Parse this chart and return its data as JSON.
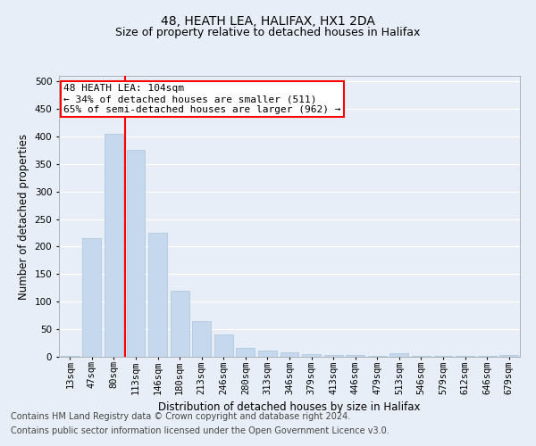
{
  "title": "48, HEATH LEA, HALIFAX, HX1 2DA",
  "subtitle": "Size of property relative to detached houses in Halifax",
  "xlabel": "Distribution of detached houses by size in Halifax",
  "ylabel": "Number of detached properties",
  "categories": [
    "13sqm",
    "47sqm",
    "80sqm",
    "113sqm",
    "146sqm",
    "180sqm",
    "213sqm",
    "246sqm",
    "280sqm",
    "313sqm",
    "346sqm",
    "379sqm",
    "413sqm",
    "446sqm",
    "479sqm",
    "513sqm",
    "546sqm",
    "579sqm",
    "612sqm",
    "646sqm",
    "679sqm"
  ],
  "values": [
    2,
    215,
    405,
    375,
    225,
    120,
    65,
    40,
    17,
    12,
    8,
    5,
    4,
    3,
    2,
    7,
    2,
    2,
    1,
    1,
    3
  ],
  "bar_color": "#c5d8ed",
  "bar_edgecolor": "#a8c4dc",
  "bar_width": 0.85,
  "vline_x_index": 2,
  "vline_color": "red",
  "ylim": [
    0,
    510
  ],
  "yticks": [
    0,
    50,
    100,
    150,
    200,
    250,
    300,
    350,
    400,
    450,
    500
  ],
  "annotation_text": "48 HEATH LEA: 104sqm\n← 34% of detached houses are smaller (511)\n65% of semi-detached houses are larger (962) →",
  "annotation_box_color": "white",
  "annotation_box_edgecolor": "red",
  "footer_line1": "Contains HM Land Registry data © Crown copyright and database right 2024.",
  "footer_line2": "Contains public sector information licensed under the Open Government Licence v3.0.",
  "background_color": "#e8eef7",
  "plot_bg_color": "#e8eef7",
  "grid_color": "white",
  "title_fontsize": 10,
  "subtitle_fontsize": 9,
  "axis_label_fontsize": 8.5,
  "tick_fontsize": 7.5,
  "annotation_fontsize": 8,
  "footer_fontsize": 7
}
